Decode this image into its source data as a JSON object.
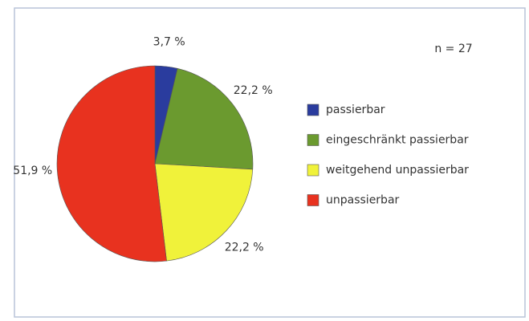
{
  "chart_data": {
    "type": "pie",
    "categories": [
      "passierbar",
      "eingeschränkt passierbar",
      "weitgehend unpassierbar",
      "unpassierbar"
    ],
    "values": [
      3.7,
      22.2,
      22.2,
      51.9
    ],
    "value_labels": [
      "3,7 %",
      "22,2 %",
      "22,2 %",
      "51,9 %"
    ],
    "colors": [
      "#2a3c9e",
      "#6b9a2f",
      "#f0f23a",
      "#e8321f"
    ],
    "annotation": "n = 27"
  }
}
